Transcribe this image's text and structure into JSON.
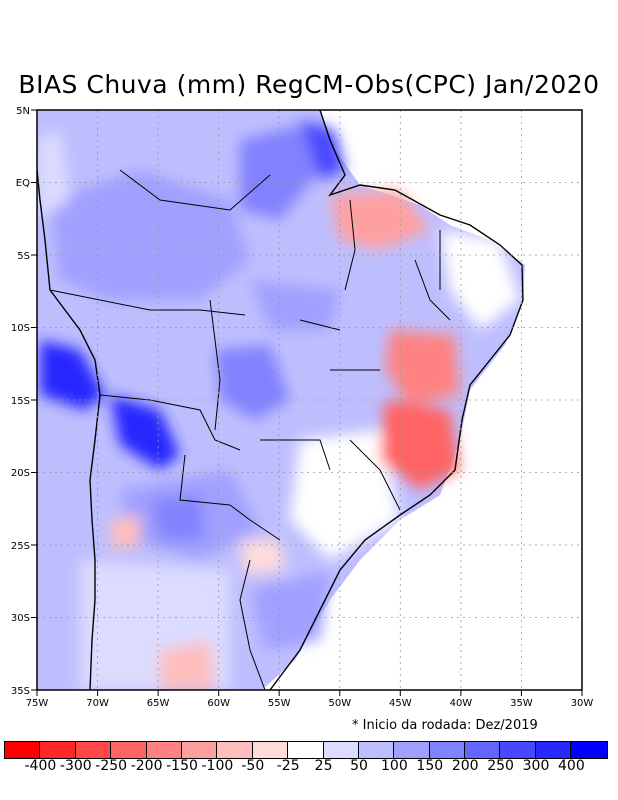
{
  "title": "BIAS Chuva (mm) RegCM-Obs(CPC) Jan/2020",
  "note": "* Inicio da rodada: Dez/2019",
  "axes": {
    "lon_labels": [
      "75W",
      "70W",
      "65W",
      "60W",
      "55W",
      "50W",
      "45W",
      "40W",
      "35W",
      "30W"
    ],
    "lat_labels": [
      "5N",
      "EQ",
      "5S",
      "10S",
      "15S",
      "20S",
      "25S",
      "30S",
      "35S"
    ],
    "lon_range": [
      -75,
      -30
    ],
    "lat_range": [
      -35,
      5
    ]
  },
  "colorbar": {
    "labels": [
      "-400",
      "-300",
      "-250",
      "-200",
      "-150",
      "-100",
      "-50",
      "-25",
      "25",
      "50",
      "100",
      "150",
      "200",
      "250",
      "300",
      "400"
    ],
    "colors": [
      "#ff0000",
      "#ff2828",
      "#ff4848",
      "#ff6464",
      "#ff8282",
      "#ffa0a0",
      "#ffbebe",
      "#ffdcdc",
      "#ffffff",
      "#dcdcff",
      "#bebeff",
      "#a0a0ff",
      "#8282ff",
      "#6464ff",
      "#4848ff",
      "#2828ff",
      "#0000ff"
    ]
  },
  "field_colors": {
    "ocean": "#ffffff",
    "light_blue": "#dcdcff",
    "mid_blue": "#a0a0ff",
    "strong_blue": "#6464ff",
    "deep_blue": "#2828ff",
    "light_red": "#ffbebe",
    "mid_red": "#ff8282"
  }
}
